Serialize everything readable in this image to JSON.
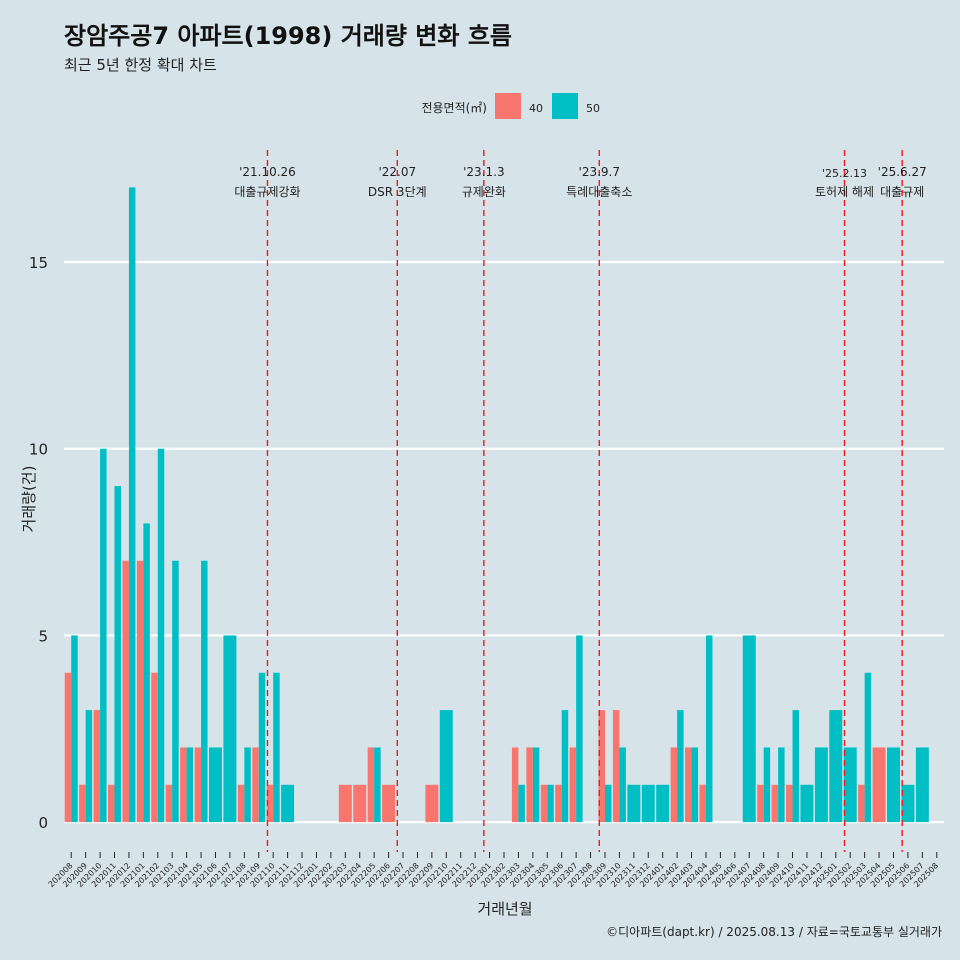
{
  "chart_data": {
    "type": "bar",
    "title": "장암주공7 아파트(1998) 거래량 변화 흐름",
    "subtitle": "최근 5년 한정 확대 차트",
    "xlabel": "거래년월",
    "ylabel": "거래량(건)",
    "ylim": [
      -0.8,
      18
    ],
    "yticks": [
      0,
      5,
      10,
      15
    ],
    "grid": "horizontal",
    "legend": {
      "title": "전용면적(㎡)",
      "placement": "top"
    },
    "caption": "©디아파트(dapt.kr) / 2025.08.13 / 자료=국토교통부 실거래가",
    "categories": [
      "202008",
      "202009",
      "202010",
      "202011",
      "202012",
      "202101",
      "202102",
      "202103",
      "202104",
      "202105",
      "202106",
      "202107",
      "202108",
      "202109",
      "202110",
      "202111",
      "202112",
      "202201",
      "202202",
      "202203",
      "202204",
      "202205",
      "202206",
      "202207",
      "202208",
      "202209",
      "202210",
      "202211",
      "202212",
      "202301",
      "202302",
      "202303",
      "202304",
      "202305",
      "202306",
      "202307",
      "202308",
      "202309",
      "202310",
      "202311",
      "202312",
      "202401",
      "202402",
      "202403",
      "202404",
      "202405",
      "202406",
      "202407",
      "202408",
      "202409",
      "202410",
      "202411",
      "202412",
      "202501",
      "202502",
      "202503",
      "202504",
      "202505",
      "202506",
      "202507",
      "202508"
    ],
    "series": [
      {
        "name": "40",
        "color": "#f8766d",
        "values": [
          4,
          1,
          3,
          1,
          7,
          7,
          4,
          1,
          2,
          2,
          0,
          0,
          1,
          2,
          1,
          0,
          0,
          0,
          0,
          1,
          1,
          2,
          1,
          0,
          0,
          1,
          0,
          0,
          0,
          0,
          0,
          2,
          2,
          1,
          1,
          2,
          0,
          3,
          3,
          0,
          0,
          0,
          2,
          2,
          1,
          0,
          0,
          0,
          1,
          1,
          1,
          0,
          0,
          0,
          0,
          1,
          2,
          0,
          0,
          0,
          0
        ]
      },
      {
        "name": "50",
        "color": "#00bfc4",
        "values": [
          5,
          3,
          10,
          9,
          17,
          8,
          10,
          7,
          2,
          7,
          2,
          5,
          2,
          4,
          4,
          1,
          0,
          0,
          0,
          0,
          0,
          2,
          0,
          0,
          0,
          0,
          3,
          0,
          0,
          0,
          0,
          1,
          2,
          1,
          3,
          5,
          0,
          1,
          2,
          1,
          1,
          1,
          3,
          2,
          5,
          0,
          0,
          5,
          2,
          2,
          3,
          1,
          2,
          3,
          2,
          4,
          0,
          2,
          1,
          2,
          0
        ]
      }
    ],
    "annotations": [
      {
        "date": "'21.10.26",
        "label": "대출규제강화",
        "month_index": 14
      },
      {
        "date": "'22.07",
        "label": "DSR 3단계",
        "month_index": 23
      },
      {
        "date": "'23.1.3",
        "label": "규제완화",
        "month_index": 29
      },
      {
        "date": "'23.9.7",
        "label": "특례대출축소",
        "month_index": 37
      },
      {
        "date": "'25.2.13",
        "label": "토허제 해제",
        "month_index": 54
      },
      {
        "date": "'25.6.27",
        "label": "대출규제",
        "month_index": 58
      }
    ]
  }
}
